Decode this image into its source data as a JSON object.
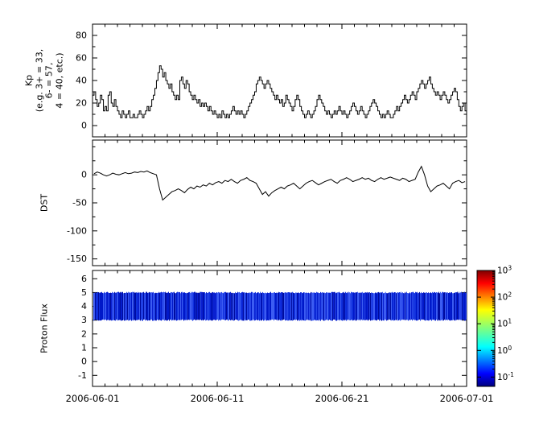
{
  "figure": {
    "background": "#ffffff",
    "x_axis": {
      "tick_labels": [
        "2006-06-01",
        "2006-06-11",
        "2006-06-21",
        "2006-07-01"
      ],
      "tick_days": [
        0,
        10,
        20,
        30
      ],
      "minor_tick_every_days": 1,
      "total_days": 30
    }
  },
  "chart_data": [
    {
      "id": "kp",
      "type": "step",
      "ylabel_text": "Kp\n(e.g. 3+ = 33,\n6- = 57,\n4 = 40, etc.)",
      "line_color": "#000000",
      "ylim": [
        -10,
        90
      ],
      "yticks": [
        0,
        20,
        40,
        60,
        80
      ],
      "yticks_minor": [
        10,
        30,
        50,
        70
      ],
      "points_per_day": 8,
      "values": [
        27,
        30,
        23,
        17,
        20,
        27,
        23,
        13,
        17,
        13,
        27,
        30,
        20,
        17,
        23,
        17,
        13,
        10,
        7,
        13,
        10,
        7,
        10,
        13,
        7,
        7,
        10,
        7,
        7,
        10,
        13,
        10,
        7,
        10,
        13,
        17,
        13,
        17,
        23,
        27,
        33,
        40,
        47,
        53,
        50,
        43,
        47,
        40,
        37,
        33,
        37,
        30,
        27,
        23,
        27,
        23,
        40,
        43,
        37,
        33,
        40,
        37,
        30,
        27,
        23,
        27,
        23,
        20,
        23,
        17,
        20,
        17,
        20,
        17,
        13,
        17,
        13,
        10,
        13,
        10,
        7,
        10,
        7,
        13,
        10,
        7,
        10,
        7,
        10,
        13,
        17,
        13,
        10,
        13,
        10,
        13,
        10,
        7,
        10,
        13,
        17,
        20,
        23,
        27,
        30,
        37,
        40,
        43,
        40,
        37,
        33,
        37,
        40,
        37,
        33,
        30,
        27,
        23,
        27,
        23,
        20,
        23,
        17,
        20,
        27,
        23,
        20,
        17,
        13,
        17,
        23,
        27,
        23,
        17,
        13,
        10,
        7,
        10,
        13,
        10,
        7,
        10,
        13,
        17,
        23,
        27,
        23,
        20,
        17,
        13,
        10,
        13,
        10,
        7,
        10,
        13,
        10,
        13,
        17,
        13,
        10,
        13,
        10,
        7,
        10,
        13,
        17,
        20,
        17,
        13,
        10,
        13,
        17,
        13,
        10,
        7,
        10,
        13,
        17,
        20,
        23,
        20,
        17,
        13,
        10,
        7,
        10,
        7,
        10,
        13,
        10,
        7,
        7,
        10,
        13,
        17,
        13,
        17,
        20,
        23,
        27,
        23,
        20,
        23,
        27,
        30,
        27,
        23,
        30,
        33,
        37,
        40,
        37,
        33,
        37,
        40,
        43,
        37,
        33,
        30,
        27,
        30,
        27,
        23,
        27,
        30,
        27,
        23,
        20,
        23,
        27,
        30,
        33,
        30,
        23,
        17,
        13,
        17,
        20,
        13
      ]
    },
    {
      "id": "dst",
      "type": "line",
      "ylabel_text": "DST",
      "line_color": "#000000",
      "ylim": [
        -162,
        62
      ],
      "yticks": [
        0,
        -50,
        -100,
        -150
      ],
      "yticks_minor": [
        50,
        25,
        -25,
        -75,
        -125
      ],
      "points_per_day": 4,
      "values": [
        2,
        5,
        3,
        0,
        -2,
        0,
        3,
        1,
        0,
        2,
        4,
        2,
        3,
        5,
        4,
        6,
        5,
        7,
        4,
        2,
        0,
        -25,
        -45,
        -40,
        -35,
        -30,
        -28,
        -25,
        -28,
        -32,
        -26,
        -22,
        -25,
        -20,
        -22,
        -18,
        -20,
        -15,
        -18,
        -14,
        -12,
        -15,
        -10,
        -12,
        -8,
        -12,
        -15,
        -10,
        -8,
        -5,
        -10,
        -12,
        -15,
        -25,
        -35,
        -30,
        -38,
        -32,
        -28,
        -25,
        -22,
        -25,
        -20,
        -18,
        -15,
        -20,
        -25,
        -20,
        -15,
        -12,
        -10,
        -14,
        -18,
        -15,
        -12,
        -10,
        -8,
        -12,
        -15,
        -10,
        -8,
        -5,
        -8,
        -12,
        -10,
        -8,
        -5,
        -8,
        -6,
        -10,
        -12,
        -8,
        -5,
        -8,
        -6,
        -4,
        -6,
        -8,
        -10,
        -6,
        -8,
        -12,
        -10,
        -8,
        5,
        15,
        0,
        -20,
        -30,
        -25,
        -20,
        -18,
        -15,
        -20,
        -25,
        -15,
        -12,
        -10,
        -14,
        -12
      ]
    },
    {
      "id": "proton_flux",
      "type": "heatmap-band",
      "ylabel_text": "Proton Flux",
      "ylim": [
        -1.8,
        6.6
      ],
      "yticks": [
        -1,
        0,
        1,
        2,
        3,
        4,
        5,
        6
      ],
      "yticks_minor": [],
      "band": {
        "y_min": 3,
        "y_max": 5,
        "description": "dense blue vertical striping spanning full time range, flux ~0.1",
        "stripe_colors": [
          "#000c9e",
          "#0018c8",
          "#1030dd",
          "#2746e8",
          "#3c5cf2",
          "#0a20d0"
        ]
      },
      "colorbar": {
        "scale": "log",
        "tick_exponents": [
          3,
          2,
          1,
          0,
          -1
        ],
        "log_min": -1.35,
        "log_max": 3,
        "gradient_stops": [
          {
            "offset": 0,
            "color": "#7f0000"
          },
          {
            "offset": 0.11,
            "color": "#ff0000"
          },
          {
            "offset": 0.34,
            "color": "#ffff00"
          },
          {
            "offset": 0.5,
            "color": "#7fff7f"
          },
          {
            "offset": 0.66,
            "color": "#00ffff"
          },
          {
            "offset": 0.89,
            "color": "#0000ff"
          },
          {
            "offset": 1,
            "color": "#00007f"
          }
        ]
      }
    }
  ]
}
